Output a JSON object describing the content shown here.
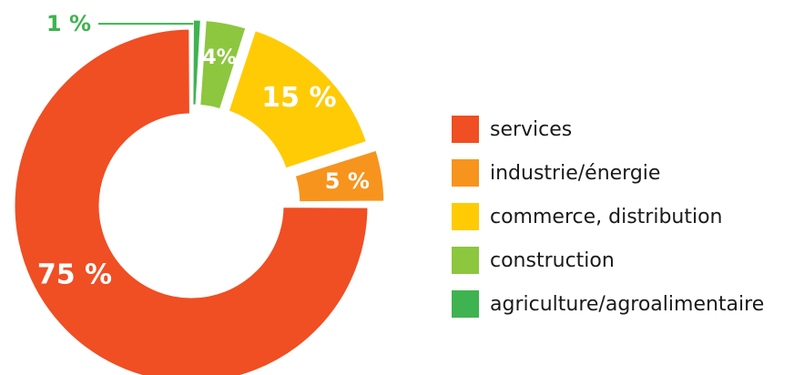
{
  "chart_data": {
    "type": "pie",
    "variant": "donut",
    "categories": [
      "services",
      "industrie/énergie",
      "commerce, distribution",
      "construction",
      "agriculture/agroalimentaire"
    ],
    "values": [
      75,
      5,
      15,
      4,
      1
    ],
    "labels": [
      "75 %",
      "5 %",
      "15 %",
      "4%",
      "1 %"
    ],
    "colors": [
      "#f04e23",
      "#f7941d",
      "#ffcb05",
      "#8dc63f",
      "#3fb34f"
    ],
    "legend": "right"
  }
}
